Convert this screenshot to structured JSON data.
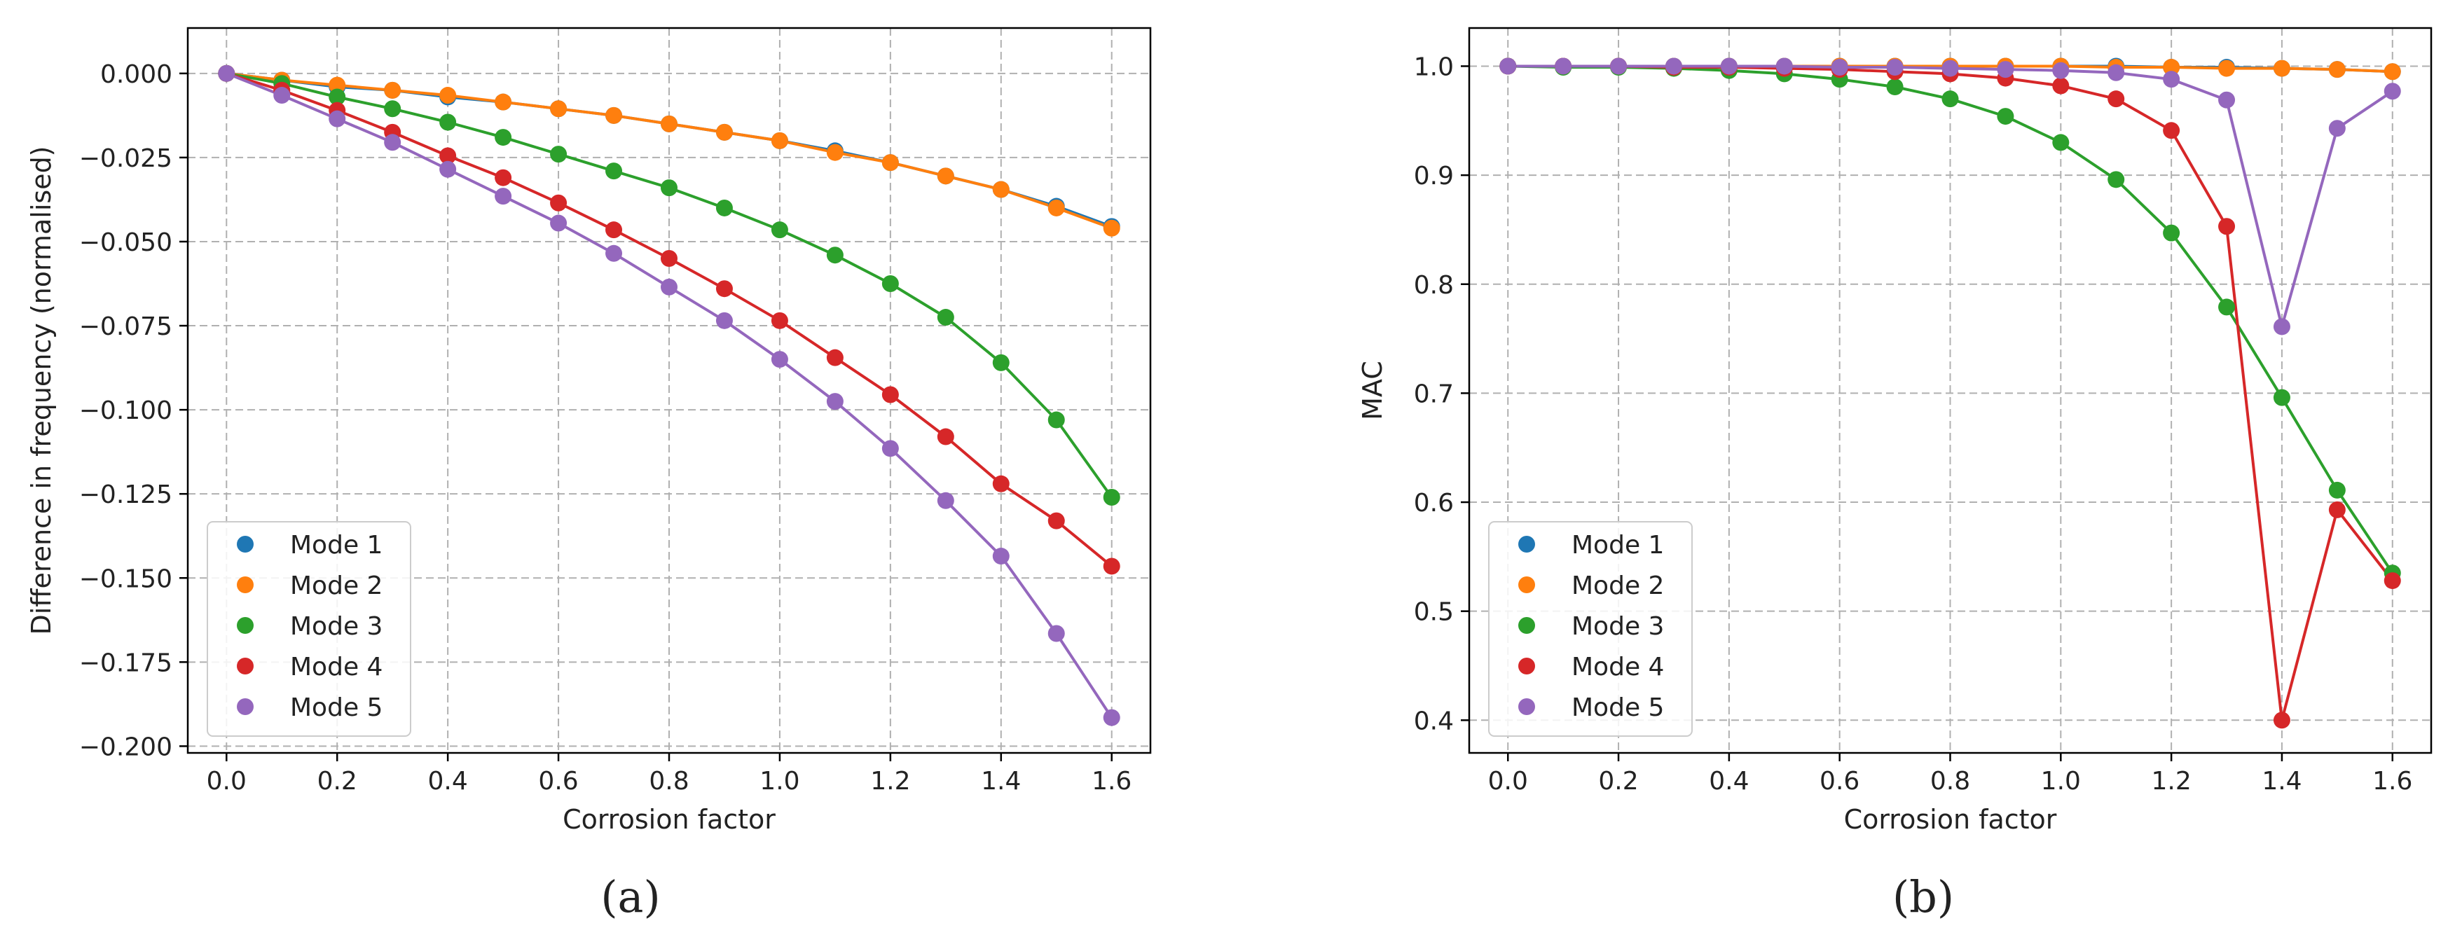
{
  "chart_data": [
    {
      "type": "line",
      "panel_label": "(a)",
      "title": "",
      "xlabel": "Corrosion factor",
      "ylabel": "Difference in frequency (normalised)",
      "xlim": [
        -0.07,
        1.67
      ],
      "ylim": [
        -0.202,
        0.0135
      ],
      "x_ticks": [
        0.0,
        0.2,
        0.4,
        0.6,
        0.8,
        1.0,
        1.2,
        1.4,
        1.6
      ],
      "x_tick_labels": [
        "0.0",
        "0.2",
        "0.4",
        "0.6",
        "0.8",
        "1.0",
        "1.2",
        "1.4",
        "1.6"
      ],
      "y_ticks": [
        0.0,
        -0.025,
        -0.05,
        -0.075,
        -0.1,
        -0.125,
        -0.15,
        -0.175,
        -0.2
      ],
      "y_tick_labels": [
        "0.000",
        "−0.025",
        "−0.050",
        "−0.075",
        "−0.100",
        "−0.125",
        "−0.150",
        "−0.175",
        "−0.200"
      ],
      "grid": true,
      "legend_position": "lower-left",
      "x": [
        0.0,
        0.1,
        0.2,
        0.3,
        0.4,
        0.5,
        0.6,
        0.7,
        0.8,
        0.9,
        1.0,
        1.1,
        1.2,
        1.3,
        1.4,
        1.5,
        1.6
      ],
      "series": [
        {
          "name": "Mode 1",
          "color": "#1f77b4",
          "values": [
            0.0,
            -0.002,
            -0.004,
            -0.005,
            -0.007,
            -0.0085,
            -0.0105,
            -0.0125,
            -0.015,
            -0.0175,
            -0.02,
            -0.023,
            -0.0265,
            -0.0305,
            -0.0345,
            -0.0395,
            -0.0455
          ]
        },
        {
          "name": "Mode 2",
          "color": "#ff7f0e",
          "values": [
            0.0,
            -0.002,
            -0.0035,
            -0.005,
            -0.0065,
            -0.0085,
            -0.0105,
            -0.0125,
            -0.015,
            -0.0175,
            -0.02,
            -0.0235,
            -0.0265,
            -0.0305,
            -0.0345,
            -0.04,
            -0.046
          ]
        },
        {
          "name": "Mode 3",
          "color": "#2ca02c",
          "values": [
            0.0,
            -0.003,
            -0.007,
            -0.0105,
            -0.0145,
            -0.019,
            -0.024,
            -0.029,
            -0.034,
            -0.04,
            -0.0465,
            -0.054,
            -0.0625,
            -0.0725,
            -0.086,
            -0.103,
            -0.126
          ]
        },
        {
          "name": "Mode 4",
          "color": "#d62728",
          "values": [
            0.0,
            -0.005,
            -0.011,
            -0.0175,
            -0.0245,
            -0.031,
            -0.0385,
            -0.0465,
            -0.055,
            -0.064,
            -0.0735,
            -0.0845,
            -0.0955,
            -0.108,
            -0.122,
            -0.133,
            -0.1465
          ]
        },
        {
          "name": "Mode 5",
          "color": "#9467bd",
          "values": [
            0.0,
            -0.0065,
            -0.0135,
            -0.0205,
            -0.0285,
            -0.0365,
            -0.0445,
            -0.0535,
            -0.0635,
            -0.0735,
            -0.085,
            -0.0975,
            -0.1115,
            -0.127,
            -0.1435,
            -0.1665,
            -0.1915
          ]
        }
      ]
    },
    {
      "type": "line",
      "panel_label": "(b)",
      "title": "",
      "xlabel": "Corrosion factor",
      "ylabel": "MAC",
      "xlim": [
        -0.07,
        1.67
      ],
      "ylim": [
        0.37,
        1.035
      ],
      "x_ticks": [
        0.0,
        0.2,
        0.4,
        0.6,
        0.8,
        1.0,
        1.2,
        1.4,
        1.6
      ],
      "x_tick_labels": [
        "0.0",
        "0.2",
        "0.4",
        "0.6",
        "0.8",
        "1.0",
        "1.2",
        "1.4",
        "1.6"
      ],
      "y_ticks": [
        0.4,
        0.5,
        0.6,
        0.7,
        0.8,
        0.9,
        1.0
      ],
      "y_tick_labels": [
        "0.4",
        "0.5",
        "0.6",
        "0.7",
        "0.8",
        "0.9",
        "1.0"
      ],
      "grid": true,
      "legend_position": "lower-left",
      "x": [
        0.0,
        0.1,
        0.2,
        0.3,
        0.4,
        0.5,
        0.6,
        0.7,
        0.8,
        0.9,
        1.0,
        1.1,
        1.2,
        1.3,
        1.4,
        1.5,
        1.6
      ],
      "series": [
        {
          "name": "Mode 1",
          "color": "#1f77b4",
          "values": [
            1.0,
            1.0,
            1.0,
            1.0,
            1.0,
            1.0,
            1.0,
            1.0,
            1.0,
            1.0,
            1.0,
            1.0,
            0.999,
            0.999,
            0.998,
            0.997,
            0.995
          ]
        },
        {
          "name": "Mode 2",
          "color": "#ff7f0e",
          "values": [
            1.0,
            1.0,
            1.0,
            1.0,
            1.0,
            1.0,
            1.0,
            1.0,
            1.0,
            1.0,
            1.0,
            0.999,
            0.999,
            0.998,
            0.998,
            0.997,
            0.995
          ]
        },
        {
          "name": "Mode 3",
          "color": "#2ca02c",
          "values": [
            1.0,
            0.999,
            0.999,
            0.998,
            0.996,
            0.993,
            0.988,
            0.981,
            0.97,
            0.954,
            0.93,
            0.896,
            0.847,
            0.779,
            0.696,
            0.611,
            0.535
          ]
        },
        {
          "name": "Mode 4",
          "color": "#d62728",
          "values": [
            1.0,
            1.0,
            1.0,
            0.999,
            0.999,
            0.998,
            0.997,
            0.995,
            0.993,
            0.989,
            0.982,
            0.97,
            0.941,
            0.853,
            0.4,
            0.593,
            0.528
          ]
        },
        {
          "name": "Mode 5",
          "color": "#9467bd",
          "values": [
            1.0,
            1.0,
            1.0,
            1.0,
            1.0,
            1.0,
            0.999,
            0.999,
            0.998,
            0.997,
            0.996,
            0.994,
            0.988,
            0.969,
            0.761,
            0.943,
            0.977
          ]
        }
      ]
    }
  ]
}
